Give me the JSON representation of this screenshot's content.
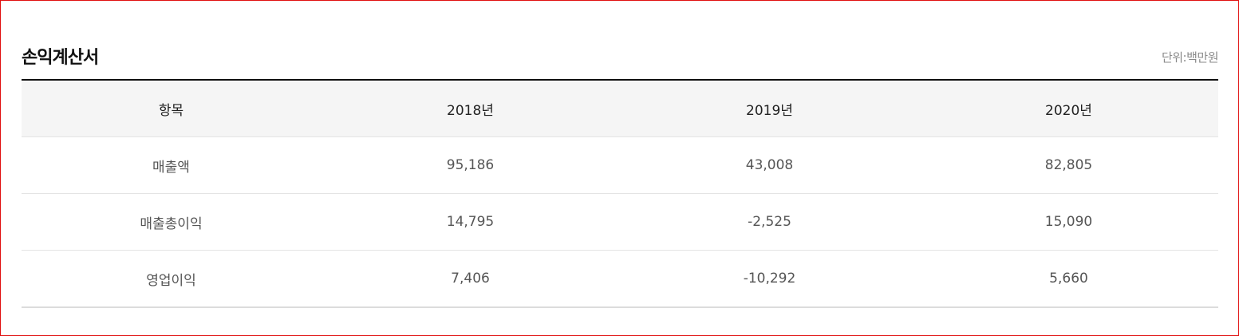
{
  "section": {
    "title": "손익계산서",
    "unit": "단위:백만원"
  },
  "table": {
    "headers": [
      "항목",
      "2018년",
      "2019년",
      "2020년"
    ],
    "rows": [
      [
        "매출액",
        "95,186",
        "43,008",
        "82,805"
      ],
      [
        "매출총이익",
        "14,795",
        "-2,525",
        "15,090"
      ],
      [
        "영업이익",
        "7,406",
        "-10,292",
        "5,660"
      ]
    ]
  }
}
